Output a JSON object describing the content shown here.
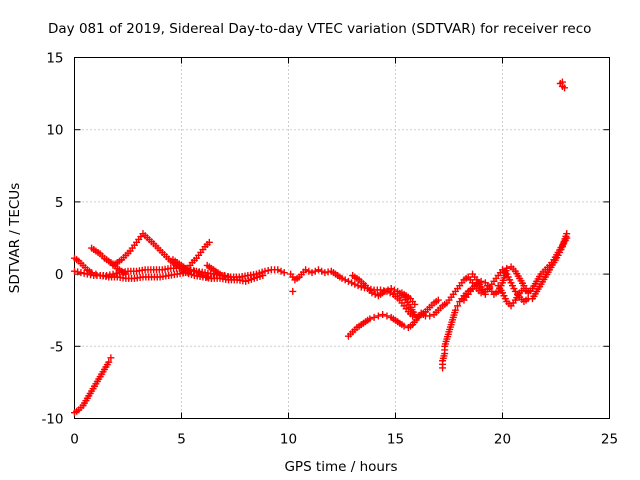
{
  "chart_data": {
    "type": "scatter",
    "title": "Day 081 of 2019, Sidereal Day-to-day VTEC variation (SDTVAR) for receiver reco",
    "xlabel": "GPS time / hours",
    "ylabel": "SDTVAR / TECUs",
    "xlim": [
      0,
      25
    ],
    "ylim": [
      -10,
      15
    ],
    "xticks": [
      0,
      5,
      10,
      15,
      20,
      25
    ],
    "yticks": [
      -10,
      -5,
      0,
      5,
      10,
      15
    ],
    "grid": true,
    "marker": "+",
    "series": [
      {
        "name": "SDTVAR",
        "color": "#ff0000",
        "points": [
          [
            0.0,
            1.1
          ],
          [
            0.2,
            0.9
          ],
          [
            0.4,
            0.6
          ],
          [
            0.6,
            0.3
          ],
          [
            0.8,
            0.1
          ],
          [
            1.0,
            0.0
          ],
          [
            1.2,
            -0.1
          ],
          [
            1.5,
            -0.1
          ],
          [
            1.8,
            0.0
          ],
          [
            2.1,
            0.1
          ],
          [
            2.5,
            0.2
          ],
          [
            2.9,
            0.2
          ],
          [
            3.3,
            0.3
          ],
          [
            3.7,
            0.3
          ],
          [
            4.1,
            0.3
          ],
          [
            4.5,
            0.4
          ],
          [
            4.9,
            0.4
          ],
          [
            5.3,
            0.3
          ],
          [
            5.7,
            0.2
          ],
          [
            6.1,
            0.1
          ],
          [
            6.5,
            0.0
          ],
          [
            6.9,
            -0.1
          ],
          [
            7.3,
            -0.2
          ],
          [
            7.7,
            -0.2
          ],
          [
            8.1,
            -0.1
          ],
          [
            8.5,
            0.0
          ],
          [
            8.9,
            0.2
          ],
          [
            9.2,
            0.3
          ],
          [
            9.5,
            0.3
          ],
          [
            9.8,
            0.1
          ],
          [
            0.0,
            0.2
          ],
          [
            0.3,
            0.1
          ],
          [
            0.6,
            0.0
          ],
          [
            0.9,
            -0.1
          ],
          [
            1.2,
            -0.1
          ],
          [
            1.6,
            -0.2
          ],
          [
            2.0,
            -0.2
          ],
          [
            2.4,
            -0.3
          ],
          [
            2.8,
            -0.3
          ],
          [
            3.2,
            -0.2
          ],
          [
            3.6,
            -0.2
          ],
          [
            4.0,
            -0.2
          ],
          [
            4.4,
            -0.1
          ],
          [
            4.8,
            0.0
          ],
          [
            5.2,
            0.1
          ],
          [
            5.6,
            -0.1
          ],
          [
            6.0,
            -0.2
          ],
          [
            6.4,
            -0.3
          ],
          [
            6.8,
            -0.3
          ],
          [
            7.2,
            -0.4
          ],
          [
            7.6,
            -0.4
          ],
          [
            8.0,
            -0.5
          ],
          [
            8.4,
            -0.3
          ],
          [
            8.8,
            -0.1
          ],
          [
            0.8,
            1.8
          ],
          [
            1.0,
            1.6
          ],
          [
            1.2,
            1.4
          ],
          [
            1.4,
            1.1
          ],
          [
            1.6,
            0.9
          ],
          [
            1.8,
            0.7
          ],
          [
            2.0,
            0.4
          ],
          [
            2.2,
            0.2
          ],
          [
            2.4,
            0.0
          ],
          [
            1.8,
            0.6
          ],
          [
            2.0,
            0.8
          ],
          [
            2.2,
            1.0
          ],
          [
            2.4,
            1.3
          ],
          [
            2.6,
            1.6
          ],
          [
            2.8,
            2.0
          ],
          [
            3.0,
            2.4
          ],
          [
            3.2,
            2.8
          ],
          [
            3.7,
            2.1
          ],
          [
            3.9,
            1.8
          ],
          [
            4.1,
            1.5
          ],
          [
            4.3,
            1.2
          ],
          [
            4.5,
            0.9
          ],
          [
            4.7,
            0.7
          ],
          [
            4.9,
            0.5
          ],
          [
            5.1,
            0.3
          ],
          [
            5.3,
            0.1
          ],
          [
            4.6,
            1.0
          ],
          [
            4.8,
            0.8
          ],
          [
            5.0,
            0.6
          ],
          [
            5.2,
            0.4
          ],
          [
            5.4,
            0.3
          ],
          [
            5.6,
            0.2
          ],
          [
            5.8,
            0.1
          ],
          [
            6.0,
            -0.1
          ],
          [
            6.2,
            -0.2
          ],
          [
            6.4,
            -0.3
          ],
          [
            5.1,
            0.1
          ],
          [
            5.3,
            0.4
          ],
          [
            5.5,
            0.8
          ],
          [
            5.7,
            1.1
          ],
          [
            5.9,
            1.5
          ],
          [
            6.1,
            1.9
          ],
          [
            6.3,
            2.2
          ],
          [
            6.2,
            0.6
          ],
          [
            6.4,
            0.4
          ],
          [
            6.6,
            0.2
          ],
          [
            6.8,
            0.0
          ],
          [
            7.0,
            -0.1
          ],
          [
            7.2,
            -0.2
          ],
          [
            0.0,
            -9.6
          ],
          [
            0.2,
            -9.4
          ],
          [
            0.4,
            -9.1
          ],
          [
            0.6,
            -8.6
          ],
          [
            0.8,
            -8.1
          ],
          [
            1.0,
            -7.6
          ],
          [
            1.2,
            -7.1
          ],
          [
            1.4,
            -6.6
          ],
          [
            1.6,
            -6.1
          ],
          [
            1.7,
            -5.8
          ],
          [
            10.1,
            0.0
          ],
          [
            10.3,
            -0.4
          ],
          [
            10.5,
            -0.2
          ],
          [
            10.8,
            0.3
          ],
          [
            11.1,
            0.1
          ],
          [
            11.4,
            0.3
          ],
          [
            11.7,
            0.1
          ],
          [
            12.0,
            0.2
          ],
          [
            12.2,
            0.0
          ],
          [
            12.5,
            -0.3
          ],
          [
            12.8,
            -0.5
          ],
          [
            13.1,
            -0.7
          ],
          [
            13.4,
            -0.9
          ],
          [
            13.7,
            -1.0
          ],
          [
            14.0,
            -1.1
          ],
          [
            14.3,
            -1.1
          ],
          [
            14.6,
            -1.2
          ],
          [
            14.9,
            -1.4
          ],
          [
            15.2,
            -1.8
          ],
          [
            15.4,
            -2.2
          ],
          [
            15.6,
            -2.6
          ],
          [
            15.8,
            -2.9
          ],
          [
            16.0,
            -3.0
          ],
          [
            16.2,
            -2.8
          ],
          [
            16.4,
            -2.6
          ],
          [
            16.6,
            -2.3
          ],
          [
            16.8,
            -2.0
          ],
          [
            17.0,
            -1.8
          ],
          [
            10.2,
            -1.2
          ],
          [
            13.0,
            -0.1
          ],
          [
            13.3,
            -0.4
          ],
          [
            13.6,
            -0.8
          ],
          [
            13.9,
            -1.3
          ],
          [
            14.2,
            -1.5
          ],
          [
            14.5,
            -1.2
          ],
          [
            14.8,
            -1.0
          ],
          [
            15.1,
            -1.2
          ],
          [
            15.4,
            -1.6
          ],
          [
            15.7,
            -2.3
          ],
          [
            15.9,
            -2.8
          ],
          [
            15.3,
            -1.3
          ],
          [
            15.5,
            -1.5
          ],
          [
            15.7,
            -1.7
          ],
          [
            15.9,
            -2.1
          ],
          [
            12.8,
            -4.3
          ],
          [
            13.0,
            -4.0
          ],
          [
            13.2,
            -3.7
          ],
          [
            13.4,
            -3.5
          ],
          [
            13.6,
            -3.3
          ],
          [
            13.8,
            -3.1
          ],
          [
            14.0,
            -3.0
          ],
          [
            14.2,
            -2.9
          ],
          [
            14.4,
            -2.8
          ],
          [
            14.6,
            -2.9
          ],
          [
            14.8,
            -3.0
          ],
          [
            15.0,
            -3.2
          ],
          [
            15.2,
            -3.4
          ],
          [
            15.4,
            -3.6
          ],
          [
            15.6,
            -3.7
          ],
          [
            15.8,
            -3.5
          ],
          [
            16.2,
            -2.7
          ],
          [
            16.4,
            -2.9
          ],
          [
            16.6,
            -2.9
          ],
          [
            16.8,
            -2.8
          ],
          [
            17.0,
            -2.5
          ],
          [
            17.2,
            -2.2
          ],
          [
            17.4,
            -2.0
          ],
          [
            17.6,
            -1.6
          ],
          [
            17.8,
            -1.2
          ],
          [
            18.0,
            -0.8
          ],
          [
            18.2,
            -0.4
          ],
          [
            18.4,
            -0.2
          ],
          [
            18.6,
            -0.6
          ],
          [
            18.8,
            -1.0
          ],
          [
            19.0,
            -1.3
          ],
          [
            19.2,
            -1.2
          ],
          [
            19.4,
            -0.9
          ],
          [
            19.6,
            -0.5
          ],
          [
            19.8,
            -0.1
          ],
          [
            20.0,
            0.3
          ],
          [
            20.2,
            0.0
          ],
          [
            20.4,
            -0.6
          ],
          [
            20.6,
            -1.2
          ],
          [
            20.8,
            -1.6
          ],
          [
            21.0,
            -1.9
          ],
          [
            21.2,
            -1.7
          ],
          [
            17.2,
            -6.5
          ],
          [
            17.2,
            -6.0
          ],
          [
            17.3,
            -5.5
          ],
          [
            17.3,
            -5.0
          ],
          [
            17.4,
            -4.5
          ],
          [
            17.5,
            -4.0
          ],
          [
            17.6,
            -3.5
          ],
          [
            17.7,
            -3.0
          ],
          [
            17.8,
            -2.5
          ],
          [
            17.9,
            -2.2
          ],
          [
            18.0,
            -1.9
          ],
          [
            18.2,
            -1.5
          ],
          [
            18.4,
            -1.2
          ],
          [
            18.6,
            -1.0
          ],
          [
            18.2,
            -1.8
          ],
          [
            18.4,
            -1.4
          ],
          [
            18.6,
            -1.0
          ],
          [
            18.8,
            -0.7
          ],
          [
            19.0,
            -0.5
          ],
          [
            19.2,
            -0.6
          ],
          [
            19.4,
            -1.0
          ],
          [
            19.6,
            -1.4
          ],
          [
            19.8,
            -1.2
          ],
          [
            20.0,
            -0.6
          ],
          [
            20.2,
            0.4
          ],
          [
            20.4,
            0.5
          ],
          [
            20.6,
            0.2
          ],
          [
            20.8,
            -0.3
          ],
          [
            21.0,
            -0.8
          ],
          [
            21.2,
            -1.2
          ],
          [
            19.8,
            -0.8
          ],
          [
            20.0,
            -1.3
          ],
          [
            20.2,
            -1.9
          ],
          [
            20.4,
            -2.2
          ],
          [
            20.6,
            -1.8
          ],
          [
            20.8,
            -1.3
          ],
          [
            21.0,
            -1.0
          ],
          [
            21.2,
            -1.3
          ],
          [
            21.4,
            -1.0
          ],
          [
            21.6,
            -0.5
          ],
          [
            21.8,
            0.0
          ],
          [
            22.0,
            0.3
          ],
          [
            22.2,
            0.6
          ],
          [
            22.4,
            1.0
          ],
          [
            22.6,
            1.5
          ],
          [
            22.8,
            2.0
          ],
          [
            23.0,
            2.5
          ],
          [
            21.4,
            -1.7
          ],
          [
            21.6,
            -1.2
          ],
          [
            21.8,
            -0.7
          ],
          [
            22.0,
            -0.2
          ],
          [
            22.2,
            0.3
          ],
          [
            22.4,
            0.8
          ],
          [
            22.6,
            1.3
          ],
          [
            22.8,
            1.9
          ],
          [
            23.0,
            2.8
          ],
          [
            18.6,
            0.0
          ],
          [
            18.8,
            -0.4
          ],
          [
            19.0,
            -0.9
          ],
          [
            19.2,
            -1.4
          ],
          [
            22.7,
            13.2
          ],
          [
            22.8,
            13.0
          ],
          [
            22.9,
            12.9
          ],
          [
            22.8,
            13.3
          ]
        ]
      }
    ]
  }
}
